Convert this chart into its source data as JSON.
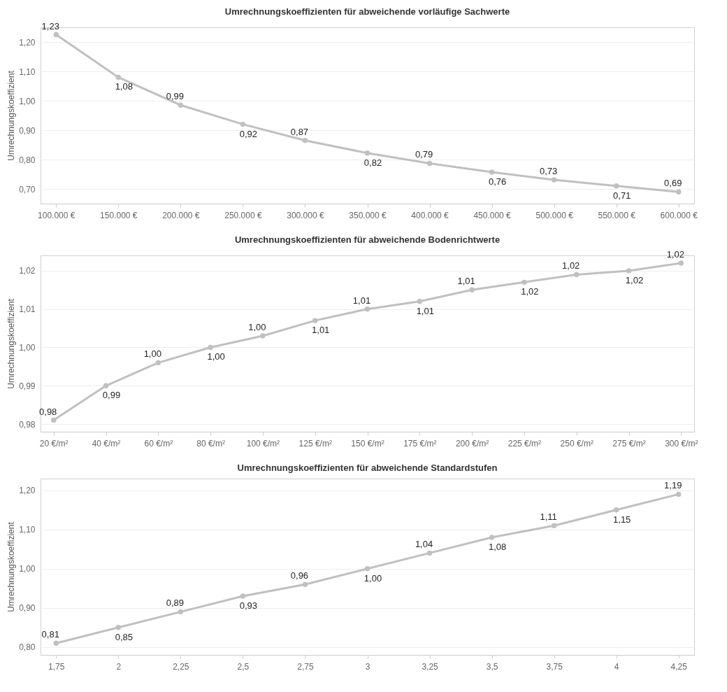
{
  "chart_data": [
    {
      "type": "line",
      "title": "Umrechnungskoeffizienten für abweichende vorläufige Sachwerte",
      "ylabel": "Umrechnungskoeffizient",
      "categories": [
        "100.000 €",
        "150.000 €",
        "200.000 €",
        "250.000 €",
        "300.000 €",
        "350.000 €",
        "400.000 €",
        "450.000 €",
        "500.000 €",
        "550.000 €",
        "600.000 €"
      ],
      "series": [
        {
          "color": "#c0c0c0",
          "values": [
            1.225,
            1.08,
            0.985,
            0.92,
            0.865,
            0.822,
            0.787,
            0.757,
            0.731,
            0.71,
            0.69
          ],
          "value_labels": [
            "1,23",
            "1,08",
            "0,99",
            "0,92",
            "0,87",
            "0,82",
            "0,79",
            "0,76",
            "0,73",
            "0,71",
            "0,69"
          ]
        }
      ],
      "ylim": [
        0.65,
        1.25
      ],
      "yticks": [
        {
          "value": 0.7,
          "label": "0,70"
        },
        {
          "value": 0.8,
          "label": "0,80"
        },
        {
          "value": 0.9,
          "label": "0,90"
        },
        {
          "value": 1.0,
          "label": "1,00"
        },
        {
          "value": 1.1,
          "label": "1,10"
        },
        {
          "value": 1.2,
          "label": "1,20"
        }
      ],
      "grid": "y",
      "marker": "circle"
    },
    {
      "type": "line",
      "title": "Umrechnungskoeffizienten für abweichende Bodenrichtwerte",
      "ylabel": "Umrechnungskoeffizient",
      "categories": [
        "20 €/m²",
        "40 €/m²",
        "60 €/m²",
        "80 €/m²",
        "100 €/m²",
        "125 €/m²",
        "150 €/m²",
        "175 €/m²",
        "200 €/m²",
        "225 €/m²",
        "250 €/m²",
        "275 €/m²",
        "300 €/m²"
      ],
      "series": [
        {
          "color": "#c0c0c0",
          "values": [
            0.981,
            0.99,
            0.996,
            1.0,
            1.003,
            1.007,
            1.01,
            1.012,
            1.015,
            1.017,
            1.019,
            1.02,
            1.022
          ],
          "value_labels": [
            "0,98",
            "0,99",
            "1,00",
            "1,00",
            "1,00",
            "1,01",
            "1,01",
            "1,01",
            "1,01",
            "1,02",
            "1,02",
            "1,02",
            "1,02"
          ]
        }
      ],
      "ylim": [
        0.978,
        1.024
      ],
      "yticks": [
        {
          "value": 0.98,
          "label": "0,98"
        },
        {
          "value": 0.99,
          "label": "0,99"
        },
        {
          "value": 1.0,
          "label": "1,00"
        },
        {
          "value": 1.01,
          "label": "1,01"
        },
        {
          "value": 1.02,
          "label": "1,02"
        }
      ],
      "grid": "y",
      "marker": "circle"
    },
    {
      "type": "line",
      "title": "Umrechnungskoeffizienten für abweichende Standardstufen",
      "ylabel": "Umrechnungskoeffizient",
      "categories": [
        "1,75",
        "2",
        "2,25",
        "2,5",
        "2,75",
        "3",
        "3,25",
        "3,5",
        "3,75",
        "4",
        "4,25"
      ],
      "series": [
        {
          "color": "#c0c0c0",
          "values": [
            0.81,
            0.85,
            0.89,
            0.93,
            0.96,
            1.0,
            1.04,
            1.08,
            1.11,
            1.15,
            1.19
          ],
          "value_labels": [
            "0,81",
            "0,85",
            "0,89",
            "0,93",
            "0,96",
            "1,00",
            "1,04",
            "1,08",
            "1,11",
            "1,15",
            "1,19"
          ]
        }
      ],
      "ylim": [
        0.78,
        1.23
      ],
      "yticks": [
        {
          "value": 0.8,
          "label": "0,80"
        },
        {
          "value": 0.9,
          "label": "0,90"
        },
        {
          "value": 1.0,
          "label": "1,00"
        },
        {
          "value": 1.1,
          "label": "1,10"
        },
        {
          "value": 1.2,
          "label": "1,20"
        }
      ],
      "grid": "y",
      "marker": "circle"
    }
  ]
}
